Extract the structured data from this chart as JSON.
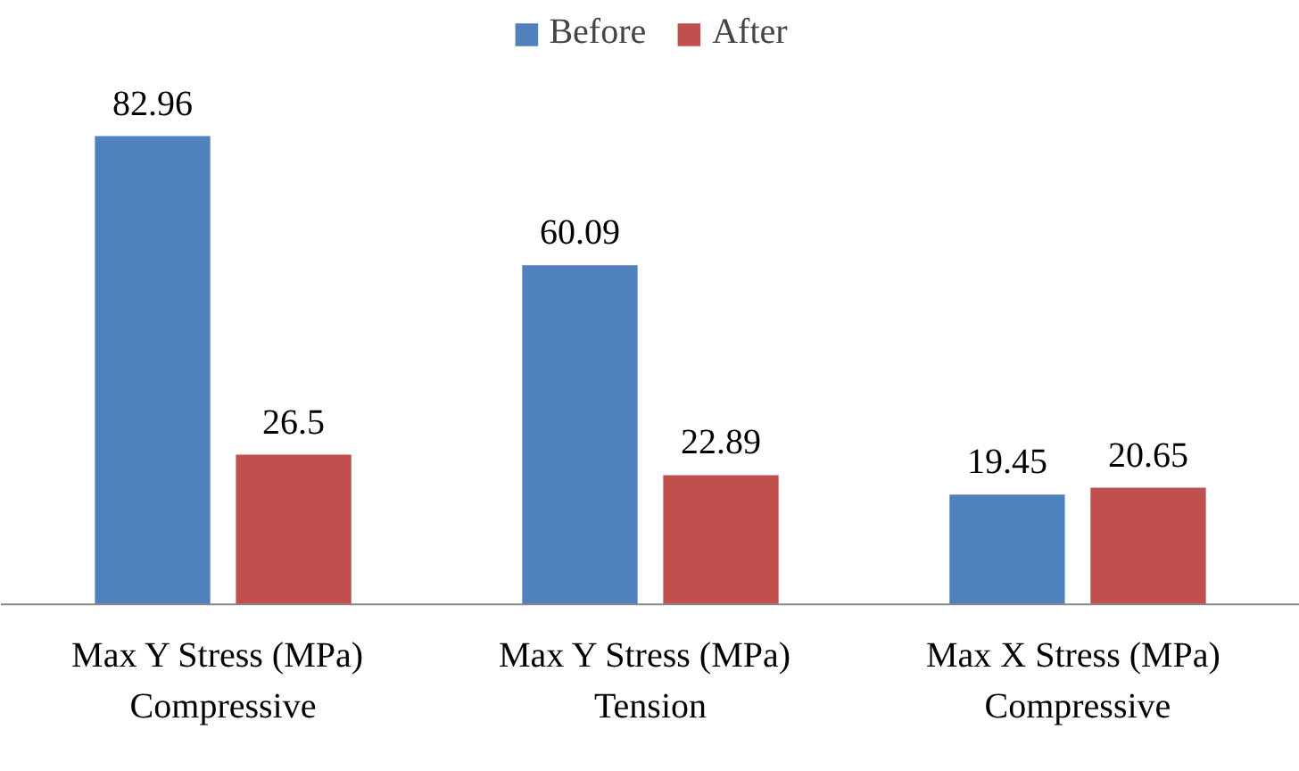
{
  "chart_data": {
    "type": "bar",
    "categories": [
      "Max Y Stress  (MPa)\nCompressive",
      "Max Y Stress  (MPa)\nTension",
      "Max X Stress  (MPa)\nCompressive"
    ],
    "series": [
      {
        "name": "Before",
        "color": "#4f81bd",
        "values": [
          82.96,
          60.09,
          19.45
        ]
      },
      {
        "name": "After",
        "color": "#c0504d",
        "values": [
          26.5,
          22.89,
          20.65
        ]
      }
    ],
    "data_labels": true,
    "legend": "top",
    "grid": false
  }
}
